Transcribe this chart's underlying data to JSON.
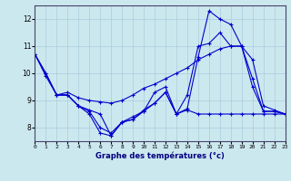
{
  "xlabel": "Graphe des températures (°c)",
  "background_color": "#cce8ef",
  "grid_color": "#aaccdd",
  "line_color": "#0000cc",
  "xlim": [
    0,
    23
  ],
  "ylim": [
    7.5,
    12.5
  ],
  "yticks": [
    8,
    9,
    10,
    11,
    12
  ],
  "xticks": [
    0,
    1,
    2,
    3,
    4,
    5,
    6,
    7,
    8,
    9,
    10,
    11,
    12,
    13,
    14,
    15,
    16,
    17,
    18,
    19,
    20,
    21,
    22,
    23
  ],
  "series": [
    {
      "x": [
        0,
        1,
        2,
        3,
        4,
        5,
        6,
        7,
        8,
        9,
        10,
        11,
        12,
        13,
        14,
        15,
        16,
        17,
        18,
        19,
        20,
        21,
        22,
        23
      ],
      "y": [
        10.7,
        10.0,
        9.2,
        9.2,
        8.8,
        8.5,
        7.8,
        7.7,
        8.2,
        8.4,
        8.6,
        9.3,
        9.5,
        8.5,
        8.7,
        10.6,
        12.3,
        12.0,
        11.8,
        11.0,
        9.8,
        8.6,
        8.6,
        8.5
      ]
    },
    {
      "x": [
        0,
        1,
        2,
        3,
        4,
        5,
        6,
        7,
        8,
        9,
        10,
        11,
        12,
        13,
        14,
        15,
        16,
        17,
        18,
        19,
        20,
        21,
        22,
        23
      ],
      "y": [
        10.7,
        10.0,
        9.2,
        9.3,
        9.1,
        9.0,
        8.95,
        8.9,
        9.0,
        9.2,
        9.45,
        9.6,
        9.8,
        10.0,
        10.2,
        10.5,
        10.7,
        10.9,
        11.0,
        11.0,
        10.5,
        8.8,
        8.65,
        8.5
      ]
    },
    {
      "x": [
        0,
        1,
        2,
        3,
        4,
        5,
        6,
        7,
        8,
        9,
        10,
        11,
        12,
        13,
        14,
        15,
        16,
        17,
        18,
        19,
        20,
        21,
        22,
        23
      ],
      "y": [
        10.7,
        9.9,
        9.2,
        9.2,
        8.8,
        8.6,
        8.0,
        7.8,
        8.2,
        8.3,
        8.6,
        8.9,
        9.3,
        8.5,
        9.2,
        11.0,
        11.1,
        11.5,
        11.0,
        11.0,
        9.5,
        8.6,
        8.6,
        8.5
      ]
    },
    {
      "x": [
        2,
        3,
        4,
        5,
        6,
        7,
        8,
        9,
        10,
        11,
        12,
        13,
        14,
        15,
        16,
        17,
        18,
        19,
        20,
        21,
        22,
        23
      ],
      "y": [
        9.2,
        9.2,
        8.8,
        8.65,
        8.5,
        7.7,
        8.2,
        8.3,
        8.65,
        8.9,
        9.3,
        8.5,
        8.65,
        8.5,
        8.5,
        8.5,
        8.5,
        8.5,
        8.5,
        8.5,
        8.5,
        8.5
      ]
    }
  ]
}
